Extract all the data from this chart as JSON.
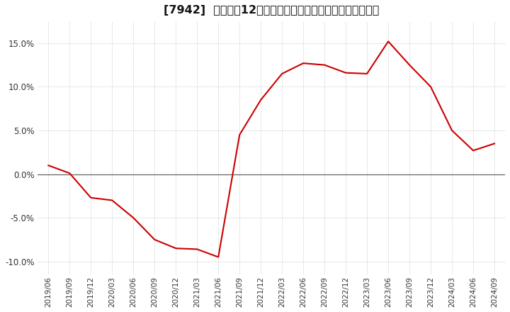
{
  "title": "[7942]  売上高の12か月移動合計の対前年同期増減率の推移",
  "x_labels": [
    "2019/06",
    "2019/09",
    "2019/12",
    "2020/03",
    "2020/06",
    "2020/09",
    "2020/12",
    "2021/03",
    "2021/06",
    "2021/09",
    "2021/12",
    "2022/03",
    "2022/06",
    "2022/09",
    "2022/12",
    "2023/03",
    "2023/06",
    "2023/09",
    "2023/12",
    "2024/03",
    "2024/06",
    "2024/09"
  ],
  "y_values": [
    0.01,
    0.001,
    -0.027,
    -0.03,
    -0.05,
    -0.075,
    -0.085,
    -0.086,
    -0.095,
    0.045,
    0.085,
    0.115,
    0.127,
    0.125,
    0.116,
    0.115,
    0.152,
    0.125,
    0.1,
    0.05,
    0.027,
    0.035
  ],
  "line_color": "#cc0000",
  "background_color": "#ffffff",
  "grid_color": "#aaaaaa",
  "zero_line_color": "#666666",
  "ylim": [
    -0.115,
    0.175
  ],
  "yticks": [
    -0.1,
    -0.05,
    0.0,
    0.05,
    0.1,
    0.15
  ],
  "title_fontsize": 11.5,
  "tick_fontsize": 7.5,
  "ytick_fontsize": 8.5
}
